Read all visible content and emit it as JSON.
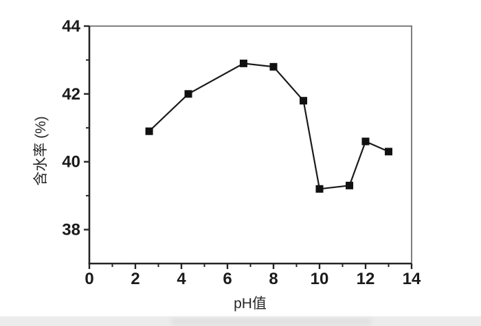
{
  "chart_data": {
    "type": "line",
    "title": "",
    "xlabel": "pH值",
    "ylabel": "含水率 (%)",
    "series_name": "含水率",
    "x": [
      2.6,
      4.3,
      6.7,
      8.0,
      9.3,
      10.0,
      11.3,
      12.0,
      13.0
    ],
    "y": [
      40.9,
      42.0,
      42.9,
      42.8,
      41.8,
      39.2,
      39.3,
      40.6,
      40.3
    ],
    "xlim": [
      0,
      14
    ],
    "ylim": [
      37,
      44
    ],
    "x_major_ticks": [
      0,
      2,
      4,
      6,
      8,
      10,
      12,
      14
    ],
    "x_minor_ticks": [
      1,
      3,
      5,
      7,
      9,
      11,
      13
    ],
    "y_major_ticks": [
      38,
      40,
      42,
      44
    ],
    "y_minor_ticks": [
      39,
      41,
      43
    ],
    "marker": "square",
    "marker_size_px": 11,
    "grid": false,
    "legend": null,
    "colors": {
      "line": "#1a1a1a",
      "marker": "#111111",
      "axis": "#242424",
      "frame": "#6f6f6f",
      "text": "#1b1b1b"
    }
  }
}
